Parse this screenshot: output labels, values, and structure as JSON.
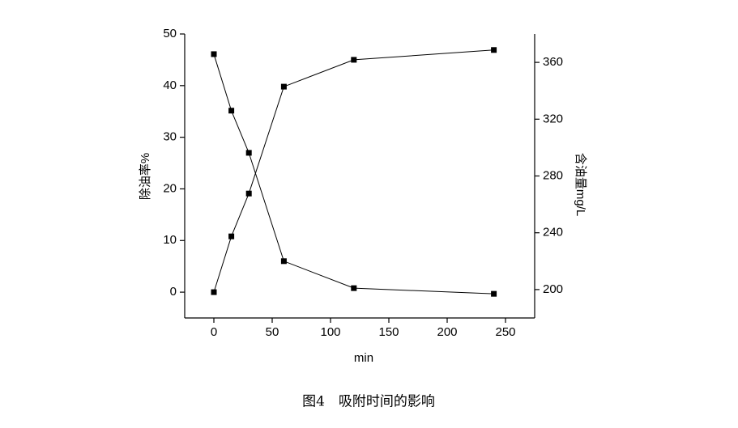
{
  "chart_data": {
    "type": "line",
    "caption": "图4　吸附时间的影响",
    "x_label": "min",
    "y_label": "除油率%",
    "y2_label": "含油量mg/L",
    "x": [
      0,
      15,
      30,
      60,
      120,
      240
    ],
    "series": [
      {
        "name": "除油率",
        "color": "#000000",
        "values": [
          0,
          10.8,
          19.1,
          39.8,
          45,
          46.9
        ]
      },
      {
        "name": "含油量",
        "color": "#000000",
        "axis": "y2",
        "values": [
          365.8,
          326,
          296.3,
          220,
          201,
          197
        ]
      }
    ],
    "xlim": [
      -25,
      275
    ],
    "xticks": [
      0,
      50,
      100,
      150,
      200,
      250
    ],
    "ylim": [
      -5,
      50
    ],
    "yticks": [
      0,
      10,
      20,
      30,
      40,
      50
    ],
    "y2lim": [
      180,
      380
    ],
    "y2ticks": [
      200,
      240,
      280,
      320,
      360
    ]
  }
}
